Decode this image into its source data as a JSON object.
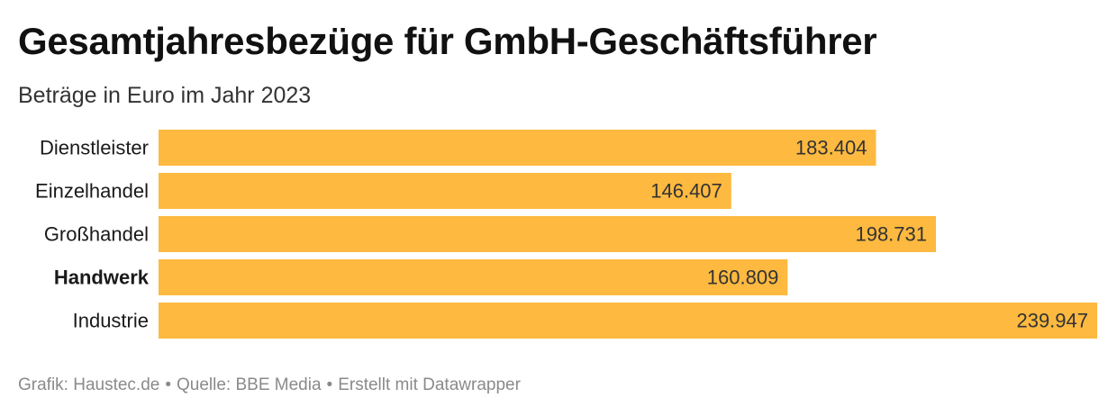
{
  "title": "Gesamtjahresbezüge für GmbH-Geschäftsführer",
  "subtitle": "Beträge in Euro im Jahr 2023",
  "footer": {
    "credit": "Grafik: Haustec.de",
    "source": "Quelle: BBE Media",
    "tool": "Erstellt mit Datawrapper",
    "separator": "•"
  },
  "chart_data": {
    "type": "bar",
    "orientation": "horizontal",
    "categories": [
      "Dienstleister",
      "Einzelhandel",
      "Großhandel",
      "Handwerk",
      "Industrie"
    ],
    "values": [
      183404,
      146407,
      198731,
      160809,
      239947
    ],
    "value_labels": [
      "183.404",
      "146.407",
      "198.731",
      "160.809",
      "239.947"
    ],
    "highlighted_category": "Handwerk",
    "xlim": [
      0,
      239947
    ],
    "bar_color": "#fdb940",
    "value_label_color": "#333333",
    "grid": false,
    "legend": "none"
  }
}
